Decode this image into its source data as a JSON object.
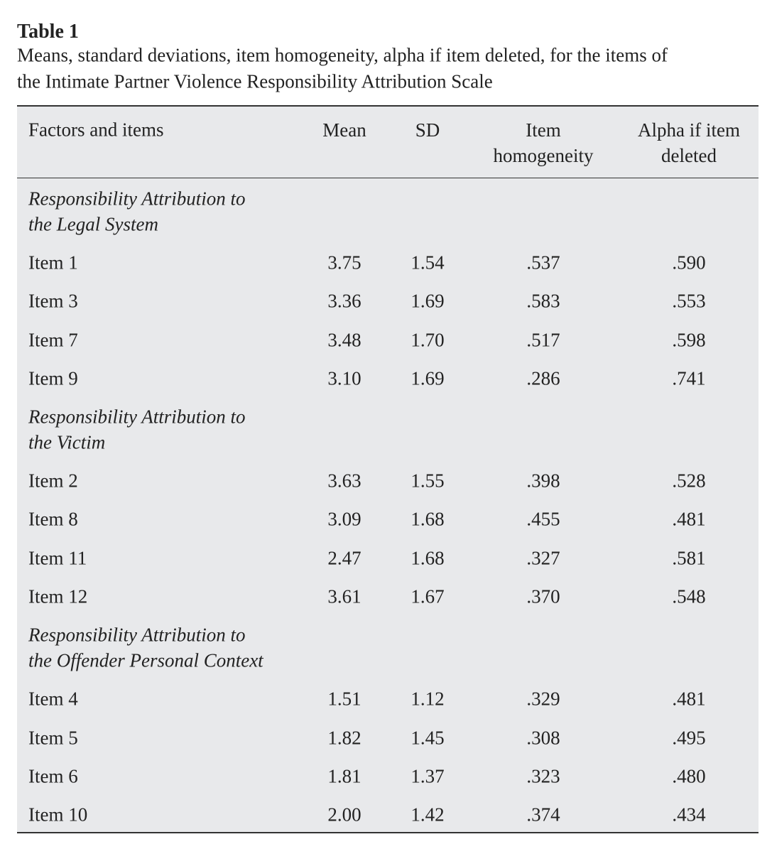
{
  "header": {
    "title": "Table 1",
    "caption": [
      "Means, standard deviations, item homogeneity, alpha if item deleted, for the items of",
      "the Intimate Partner Violence Responsibility Attribution Scale"
    ]
  },
  "table": {
    "columns": [
      "Factors and items",
      "Mean",
      "SD",
      "Item homogeneity",
      "Alpha if item deleted"
    ],
    "sections": [
      {
        "name": [
          "Responsibility Attribution to",
          "the Legal System"
        ],
        "rows": [
          [
            "Item 1",
            "3.75",
            "1.54",
            ".537",
            ".590"
          ],
          [
            "Item 3",
            "3.36",
            "1.69",
            ".583",
            ".553"
          ],
          [
            "Item 7",
            "3.48",
            "1.70",
            ".517",
            ".598"
          ],
          [
            "Item 9",
            "3.10",
            "1.69",
            ".286",
            ".741"
          ]
        ]
      },
      {
        "name": [
          "Responsibility Attribution to",
          "the Victim"
        ],
        "rows": [
          [
            "Item 2",
            "3.63",
            "1.55",
            ".398",
            ".528"
          ],
          [
            "Item 8",
            "3.09",
            "1.68",
            ".455",
            ".481"
          ],
          [
            "Item 11",
            "2.47",
            "1.68",
            ".327",
            ".581"
          ],
          [
            "Item 12",
            "3.61",
            "1.67",
            ".370",
            ".548"
          ]
        ]
      },
      {
        "name": [
          "Responsibility Attribution to",
          "the Offender Personal Context"
        ],
        "rows": [
          [
            "Item 4",
            "1.51",
            "1.12",
            ".329",
            ".481"
          ],
          [
            "Item 5",
            "1.82",
            "1.45",
            ".308",
            ".495"
          ],
          [
            "Item 6",
            "1.81",
            "1.37",
            ".323",
            ".480"
          ],
          [
            "Item 10",
            "2.00",
            "1.42",
            ".374",
            ".434"
          ]
        ]
      }
    ]
  }
}
